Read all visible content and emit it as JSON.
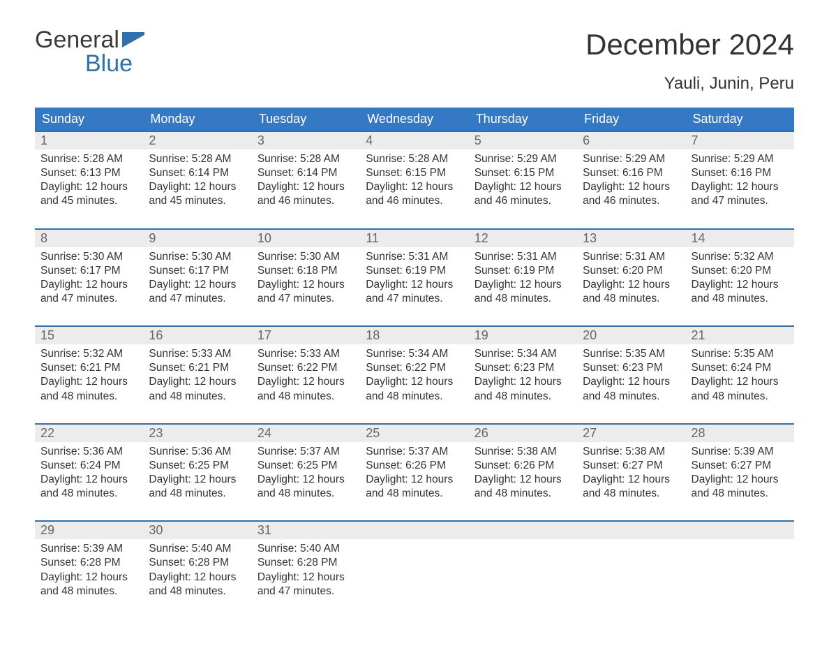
{
  "brand": {
    "top": "General",
    "bottom": "Blue",
    "flag_color": "#2f6fab"
  },
  "title": "December 2024",
  "location": "Yauli, Junin, Peru",
  "header_bg": "#3578c4",
  "header_text": "#ffffff",
  "daynum_bg": "#ececec",
  "week_border": "#2f6fab",
  "daynames": [
    "Sunday",
    "Monday",
    "Tuesday",
    "Wednesday",
    "Thursday",
    "Friday",
    "Saturday"
  ],
  "weeks": [
    [
      {
        "n": "1",
        "sr": "5:28 AM",
        "ss": "6:13 PM",
        "dh": "12",
        "dm": "45"
      },
      {
        "n": "2",
        "sr": "5:28 AM",
        "ss": "6:14 PM",
        "dh": "12",
        "dm": "45"
      },
      {
        "n": "3",
        "sr": "5:28 AM",
        "ss": "6:14 PM",
        "dh": "12",
        "dm": "46"
      },
      {
        "n": "4",
        "sr": "5:28 AM",
        "ss": "6:15 PM",
        "dh": "12",
        "dm": "46"
      },
      {
        "n": "5",
        "sr": "5:29 AM",
        "ss": "6:15 PM",
        "dh": "12",
        "dm": "46"
      },
      {
        "n": "6",
        "sr": "5:29 AM",
        "ss": "6:16 PM",
        "dh": "12",
        "dm": "46"
      },
      {
        "n": "7",
        "sr": "5:29 AM",
        "ss": "6:16 PM",
        "dh": "12",
        "dm": "47"
      }
    ],
    [
      {
        "n": "8",
        "sr": "5:30 AM",
        "ss": "6:17 PM",
        "dh": "12",
        "dm": "47"
      },
      {
        "n": "9",
        "sr": "5:30 AM",
        "ss": "6:17 PM",
        "dh": "12",
        "dm": "47"
      },
      {
        "n": "10",
        "sr": "5:30 AM",
        "ss": "6:18 PM",
        "dh": "12",
        "dm": "47"
      },
      {
        "n": "11",
        "sr": "5:31 AM",
        "ss": "6:19 PM",
        "dh": "12",
        "dm": "47"
      },
      {
        "n": "12",
        "sr": "5:31 AM",
        "ss": "6:19 PM",
        "dh": "12",
        "dm": "48"
      },
      {
        "n": "13",
        "sr": "5:31 AM",
        "ss": "6:20 PM",
        "dh": "12",
        "dm": "48"
      },
      {
        "n": "14",
        "sr": "5:32 AM",
        "ss": "6:20 PM",
        "dh": "12",
        "dm": "48"
      }
    ],
    [
      {
        "n": "15",
        "sr": "5:32 AM",
        "ss": "6:21 PM",
        "dh": "12",
        "dm": "48"
      },
      {
        "n": "16",
        "sr": "5:33 AM",
        "ss": "6:21 PM",
        "dh": "12",
        "dm": "48"
      },
      {
        "n": "17",
        "sr": "5:33 AM",
        "ss": "6:22 PM",
        "dh": "12",
        "dm": "48"
      },
      {
        "n": "18",
        "sr": "5:34 AM",
        "ss": "6:22 PM",
        "dh": "12",
        "dm": "48"
      },
      {
        "n": "19",
        "sr": "5:34 AM",
        "ss": "6:23 PM",
        "dh": "12",
        "dm": "48"
      },
      {
        "n": "20",
        "sr": "5:35 AM",
        "ss": "6:23 PM",
        "dh": "12",
        "dm": "48"
      },
      {
        "n": "21",
        "sr": "5:35 AM",
        "ss": "6:24 PM",
        "dh": "12",
        "dm": "48"
      }
    ],
    [
      {
        "n": "22",
        "sr": "5:36 AM",
        "ss": "6:24 PM",
        "dh": "12",
        "dm": "48"
      },
      {
        "n": "23",
        "sr": "5:36 AM",
        "ss": "6:25 PM",
        "dh": "12",
        "dm": "48"
      },
      {
        "n": "24",
        "sr": "5:37 AM",
        "ss": "6:25 PM",
        "dh": "12",
        "dm": "48"
      },
      {
        "n": "25",
        "sr": "5:37 AM",
        "ss": "6:26 PM",
        "dh": "12",
        "dm": "48"
      },
      {
        "n": "26",
        "sr": "5:38 AM",
        "ss": "6:26 PM",
        "dh": "12",
        "dm": "48"
      },
      {
        "n": "27",
        "sr": "5:38 AM",
        "ss": "6:27 PM",
        "dh": "12",
        "dm": "48"
      },
      {
        "n": "28",
        "sr": "5:39 AM",
        "ss": "6:27 PM",
        "dh": "12",
        "dm": "48"
      }
    ],
    [
      {
        "n": "29",
        "sr": "5:39 AM",
        "ss": "6:28 PM",
        "dh": "12",
        "dm": "48"
      },
      {
        "n": "30",
        "sr": "5:40 AM",
        "ss": "6:28 PM",
        "dh": "12",
        "dm": "48"
      },
      {
        "n": "31",
        "sr": "5:40 AM",
        "ss": "6:28 PM",
        "dh": "12",
        "dm": "47"
      },
      null,
      null,
      null,
      null
    ]
  ],
  "labels": {
    "sunrise": "Sunrise:",
    "sunset": "Sunset:",
    "daylight_pre": "Daylight:",
    "hours": "hours",
    "and": "and",
    "minutes": "minutes."
  }
}
